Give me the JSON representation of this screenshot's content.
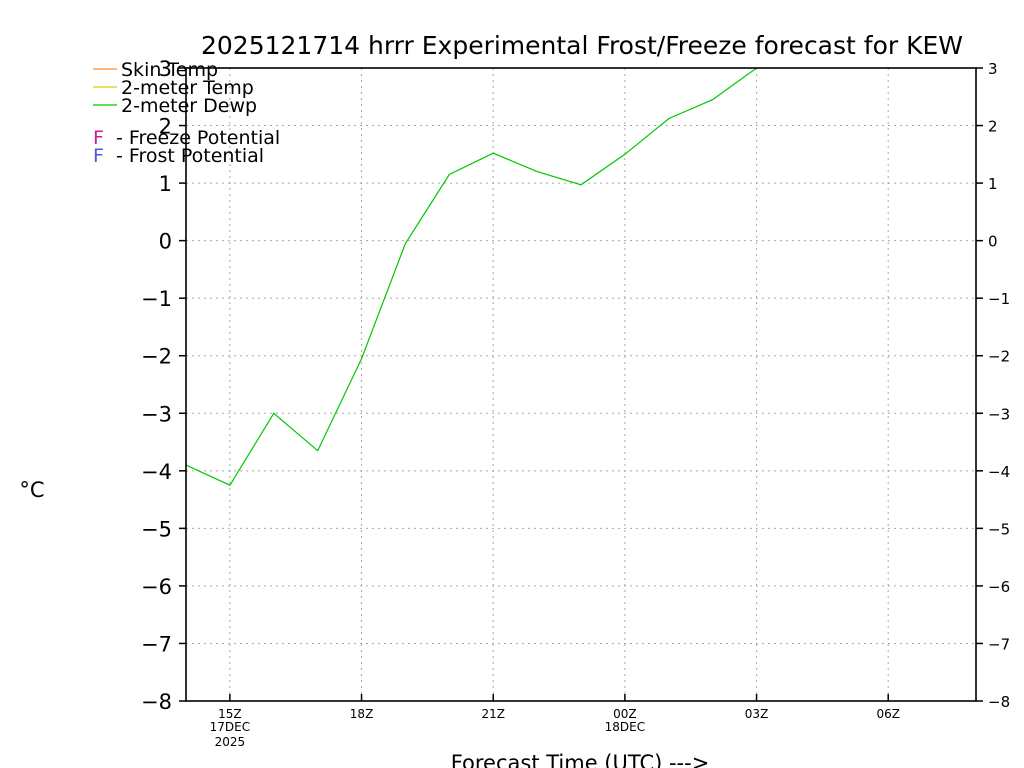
{
  "chart_data": {
    "type": "line",
    "title": "2025121714 hrrr Experimental Frost/Freeze forecast for KEW",
    "xlabel": "Forecast Time (UTC) --->",
    "ylabel": "°C",
    "ylim": [
      -8,
      3
    ],
    "xlim": [
      14,
      32
    ],
    "grid": true,
    "y_ticks": [
      3,
      2,
      1,
      0,
      -1,
      -2,
      -3,
      -4,
      -5,
      -6,
      -7,
      -8
    ],
    "y_tick_labels": [
      "3",
      "2",
      "1",
      "0",
      "−1",
      "−2",
      "−3",
      "−4",
      "−5",
      "−6",
      "−7",
      "−8"
    ],
    "x_ticks": [
      {
        "hour": 15,
        "label": "15Z",
        "sub1": "17DEC",
        "sub2": "2025"
      },
      {
        "hour": 18,
        "label": "18Z",
        "sub1": "",
        "sub2": ""
      },
      {
        "hour": 21,
        "label": "21Z",
        "sub1": "",
        "sub2": ""
      },
      {
        "hour": 24,
        "label": "00Z",
        "sub1": "18DEC",
        "sub2": ""
      },
      {
        "hour": 27,
        "label": "03Z",
        "sub1": "",
        "sub2": ""
      },
      {
        "hour": 30,
        "label": "06Z",
        "sub1": "",
        "sub2": ""
      }
    ],
    "legend_position": "top-left",
    "legend": [
      {
        "name": "Skin Temp",
        "color": "#ff8c28"
      },
      {
        "name": "2-meter Temp",
        "color": "#e8c800"
      },
      {
        "name": "2-meter Dewp",
        "color": "#00c800"
      }
    ],
    "potential_legend": [
      {
        "marker": "F",
        "text": "- Freeze Potential",
        "color": "#c81e9b"
      },
      {
        "marker": "F",
        "text": "- Frost Potential",
        "color": "#4a5ad8"
      }
    ],
    "series": [
      {
        "name": "2-meter Dewp",
        "color": "#00c800",
        "x": [
          14,
          15,
          16,
          17,
          18,
          19,
          20,
          21,
          22,
          23,
          24,
          25,
          26,
          27
        ],
        "values": [
          -3.9,
          -4.25,
          -3.0,
          -3.65,
          -2.05,
          -0.05,
          1.15,
          1.52,
          1.2,
          0.97,
          1.5,
          2.12,
          2.45,
          3.0
        ]
      }
    ]
  }
}
